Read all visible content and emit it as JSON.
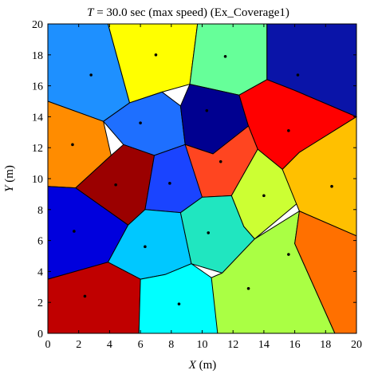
{
  "chart_data": {
    "type": "scatter",
    "title_var": "T",
    "title_rest": " = 30.0 sec (max speed) (Ex_Coverage1)",
    "xlabel_var": "X",
    "xlabel_unit": " (m)",
    "ylabel_var": "Y",
    "ylabel_unit": " (m)",
    "xlim": [
      0,
      20
    ],
    "ylim": [
      0,
      20
    ],
    "xticks": [
      0,
      2,
      4,
      6,
      8,
      10,
      12,
      14,
      16,
      18,
      20
    ],
    "yticks": [
      0,
      2,
      4,
      6,
      8,
      10,
      12,
      14,
      16,
      18,
      20
    ],
    "grid": false,
    "agents": [
      {
        "x": 2.8,
        "y": 16.7,
        "color": "#1e90ff",
        "cell": [
          [
            0,
            20
          ],
          [
            3.9,
            20
          ],
          [
            5.3,
            14.9
          ],
          [
            3.6,
            13.7
          ],
          [
            0,
            15.0
          ]
        ]
      },
      {
        "x": 7.0,
        "y": 18.0,
        "color": "#ffff00",
        "cell": [
          [
            3.9,
            20
          ],
          [
            9.7,
            20
          ],
          [
            9.2,
            16.1
          ],
          [
            7.4,
            15.6
          ],
          [
            5.3,
            14.9
          ]
        ]
      },
      {
        "x": 11.5,
        "y": 17.9,
        "color": "#66ff99",
        "cell": [
          [
            9.7,
            20
          ],
          [
            14.2,
            20
          ],
          [
            14.2,
            16.4
          ],
          [
            12.4,
            15.4
          ],
          [
            9.2,
            16.1
          ]
        ]
      },
      {
        "x": 16.2,
        "y": 16.7,
        "color": "#0a14a8",
        "cell": [
          [
            14.2,
            20
          ],
          [
            20,
            20
          ],
          [
            20,
            14.0
          ],
          [
            16.0,
            15.7
          ],
          [
            14.2,
            16.4
          ]
        ]
      },
      {
        "x": 1.6,
        "y": 12.2,
        "color": "#ff8c00",
        "cell": [
          [
            0,
            15.0
          ],
          [
            3.6,
            13.7
          ],
          [
            4.1,
            11.5
          ],
          [
            1.8,
            9.4
          ],
          [
            0,
            9.5
          ]
        ]
      },
      {
        "x": 6.0,
        "y": 13.6,
        "color": "#1e6fff",
        "cell": [
          [
            5.3,
            14.9
          ],
          [
            7.4,
            15.6
          ],
          [
            8.6,
            14.7
          ],
          [
            8.9,
            12.2
          ],
          [
            6.9,
            11.5
          ],
          [
            4.9,
            12.2
          ],
          [
            3.6,
            13.7
          ]
        ]
      },
      {
        "x": 10.3,
        "y": 14.4,
        "color": "#000090",
        "cell": [
          [
            9.2,
            16.1
          ],
          [
            12.4,
            15.4
          ],
          [
            13.0,
            13.4
          ],
          [
            10.7,
            11.6
          ],
          [
            8.9,
            12.2
          ],
          [
            8.6,
            14.7
          ]
        ]
      },
      {
        "x": 15.6,
        "y": 13.1,
        "color": "#ff0000",
        "cell": [
          [
            12.4,
            15.4
          ],
          [
            14.2,
            16.4
          ],
          [
            16.0,
            15.7
          ],
          [
            20,
            14.0
          ],
          [
            16.3,
            11.7
          ],
          [
            15.2,
            10.6
          ],
          [
            13.6,
            11.9
          ],
          [
            13.0,
            13.4
          ]
        ]
      },
      {
        "x": 4.4,
        "y": 9.6,
        "color": "#9b0000",
        "cell": [
          [
            1.8,
            9.4
          ],
          [
            4.1,
            11.5
          ],
          [
            4.9,
            12.2
          ],
          [
            6.9,
            11.5
          ],
          [
            6.3,
            8.0
          ],
          [
            5.2,
            7.0
          ]
        ]
      },
      {
        "x": 7.9,
        "y": 9.7,
        "color": "#1a44ff",
        "cell": [
          [
            6.9,
            11.5
          ],
          [
            8.9,
            12.2
          ],
          [
            10.7,
            11.6
          ],
          [
            10.0,
            8.8
          ],
          [
            8.6,
            7.8
          ],
          [
            6.3,
            8.0
          ]
        ]
      },
      {
        "x": 11.2,
        "y": 11.1,
        "color": "#ff4520",
        "cell": [
          [
            8.9,
            12.2
          ],
          [
            10.7,
            11.6
          ],
          [
            13.0,
            13.4
          ],
          [
            13.6,
            11.9
          ],
          [
            11.9,
            8.9
          ],
          [
            10.0,
            8.8
          ]
        ]
      },
      {
        "x": 1.7,
        "y": 6.6,
        "color": "#0000dd",
        "cell": [
          [
            0,
            9.5
          ],
          [
            1.8,
            9.4
          ],
          [
            5.2,
            7.0
          ],
          [
            3.9,
            4.6
          ],
          [
            0,
            3.5
          ]
        ]
      },
      {
        "x": 14.0,
        "y": 8.9,
        "color": "#ccff33",
        "cell": [
          [
            11.9,
            8.9
          ],
          [
            13.6,
            11.9
          ],
          [
            15.2,
            10.6
          ],
          [
            16.4,
            8.6
          ],
          [
            13.4,
            6.1
          ],
          [
            12.7,
            6.9
          ]
        ]
      },
      {
        "x": 18.4,
        "y": 9.5,
        "color": "#ffc000",
        "cell": [
          [
            15.2,
            10.6
          ],
          [
            16.3,
            11.7
          ],
          [
            20,
            14.0
          ],
          [
            20,
            6.3
          ],
          [
            16.3,
            7.9
          ]
        ]
      },
      {
        "x": 6.3,
        "y": 5.6,
        "color": "#00c8ff",
        "cell": [
          [
            3.9,
            4.6
          ],
          [
            5.2,
            7.0
          ],
          [
            6.3,
            8.0
          ],
          [
            8.6,
            7.8
          ],
          [
            9.3,
            4.5
          ],
          [
            7.6,
            3.8
          ],
          [
            6.0,
            3.5
          ]
        ]
      },
      {
        "x": 10.4,
        "y": 6.5,
        "color": "#20e6c0",
        "cell": [
          [
            8.6,
            7.8
          ],
          [
            10.0,
            8.8
          ],
          [
            11.9,
            8.9
          ],
          [
            12.7,
            6.9
          ],
          [
            13.4,
            6.1
          ],
          [
            11.3,
            3.9
          ],
          [
            9.3,
            4.5
          ]
        ]
      },
      {
        "x": 2.4,
        "y": 2.4,
        "color": "#c00000",
        "cell": [
          [
            0,
            3.5
          ],
          [
            3.9,
            4.6
          ],
          [
            6.0,
            3.5
          ],
          [
            5.9,
            0
          ],
          [
            0,
            0
          ]
        ]
      },
      {
        "x": 8.5,
        "y": 1.9,
        "color": "#00ffff",
        "cell": [
          [
            6.0,
            3.5
          ],
          [
            7.6,
            3.8
          ],
          [
            9.3,
            4.5
          ],
          [
            10.6,
            3.6
          ],
          [
            11.3,
            3.9
          ],
          [
            11.0,
            0
          ],
          [
            5.9,
            0
          ]
        ]
      },
      {
        "x": 13.0,
        "y": 2.9,
        "color": "#aaff44",
        "cell": [
          [
            10.6,
            3.6
          ],
          [
            11.3,
            3.9
          ],
          [
            13.4,
            6.1
          ],
          [
            16.3,
            7.9
          ],
          [
            16.0,
            5.8
          ],
          [
            18.6,
            0
          ],
          [
            11.0,
            0
          ]
        ]
      },
      {
        "x": 15.6,
        "y": 5.1,
        "color": "#ff7000",
        "cell": [
          [
            16.3,
            7.9
          ],
          [
            20,
            6.3
          ],
          [
            20,
            0
          ],
          [
            18.6,
            0
          ],
          [
            16.0,
            5.8
          ]
        ]
      }
    ]
  }
}
